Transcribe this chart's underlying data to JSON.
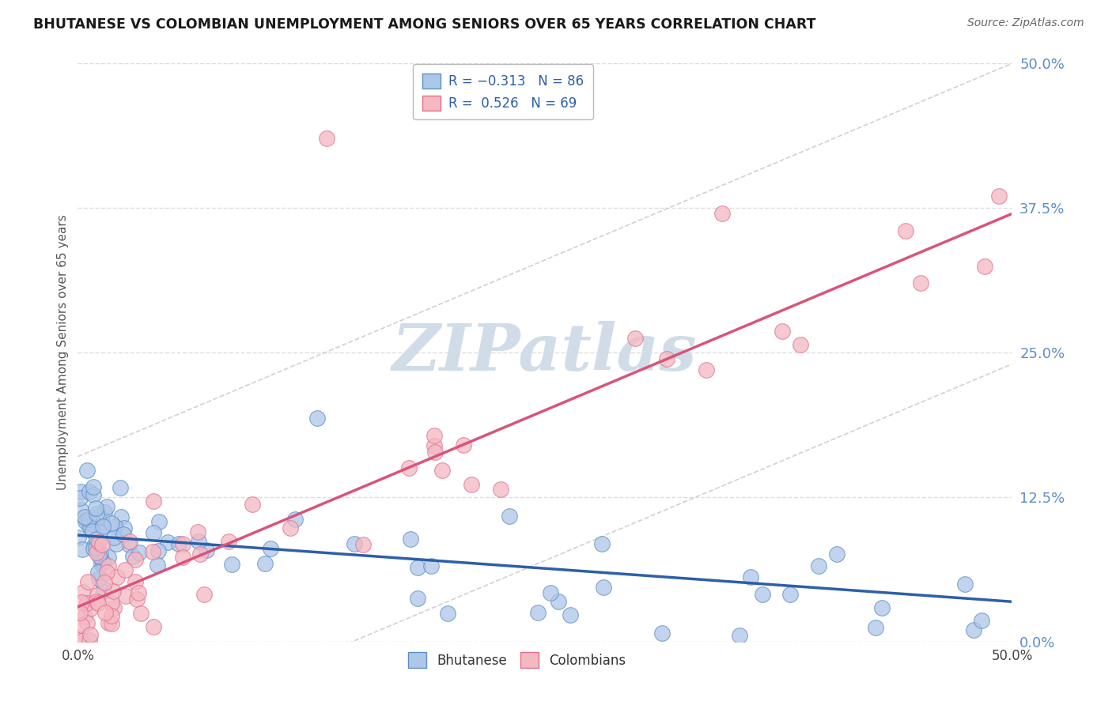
{
  "title": "BHUTANESE VS COLOMBIAN UNEMPLOYMENT AMONG SENIORS OVER 65 YEARS CORRELATION CHART",
  "source": "Source: ZipAtlas.com",
  "ylabel": "Unemployment Among Seniors over 65 years",
  "yticks_labels": [
    "0.0%",
    "12.5%",
    "25.0%",
    "37.5%",
    "50.0%"
  ],
  "ytick_vals": [
    0.0,
    0.125,
    0.25,
    0.375,
    0.5
  ],
  "xlim": [
    0.0,
    0.5
  ],
  "ylim": [
    0.0,
    0.5
  ],
  "legend_label1": "Bhutanese",
  "legend_label2": "Colombians",
  "blue_fill": "#aec6e8",
  "blue_edge": "#5b8ec7",
  "pink_fill": "#f4b8c1",
  "pink_edge": "#e07090",
  "blue_line_color": "#2c5fa8",
  "pink_line_color": "#d9547a",
  "conf_line_color": "#cccccc",
  "watermark_color": "#d0dce8",
  "tick_color": "#5b8ec7",
  "ylabel_color": "#555555",
  "grid_color": "#dddddd",
  "blue_intercept": 0.092,
  "blue_slope": -0.115,
  "pink_intercept": 0.03,
  "pink_slope": 0.68
}
